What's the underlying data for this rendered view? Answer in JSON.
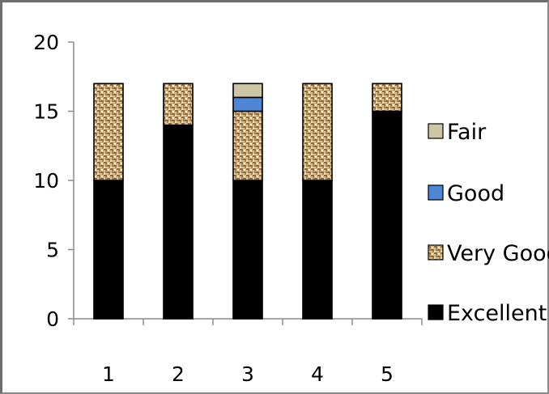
{
  "chart_data": {
    "type": "bar",
    "stacked": true,
    "categories": [
      "1",
      "2",
      "3",
      "4",
      "5"
    ],
    "series": [
      {
        "name": "Excellent",
        "values": [
          10,
          14,
          10,
          10,
          15
        ],
        "color": "#000000",
        "pattern": "solid"
      },
      {
        "name": "Very Good",
        "values": [
          7,
          3,
          5,
          7,
          2
        ],
        "color": "#c8a46e",
        "pattern": "woven"
      },
      {
        "name": "Good",
        "values": [
          0,
          0,
          1,
          0,
          0
        ],
        "color": "#4f86d8",
        "pattern": "solid"
      },
      {
        "name": "Fair",
        "values": [
          0,
          0,
          1,
          0,
          0
        ],
        "color": "#cdc6a4",
        "pattern": "solid"
      }
    ],
    "ylim": [
      0,
      20
    ],
    "yticks": [
      0,
      5,
      10,
      15,
      20
    ],
    "grid": false,
    "legend": {
      "position": "right",
      "order": [
        "Fair",
        "Good",
        "Very Good",
        "Excellent"
      ]
    }
  }
}
